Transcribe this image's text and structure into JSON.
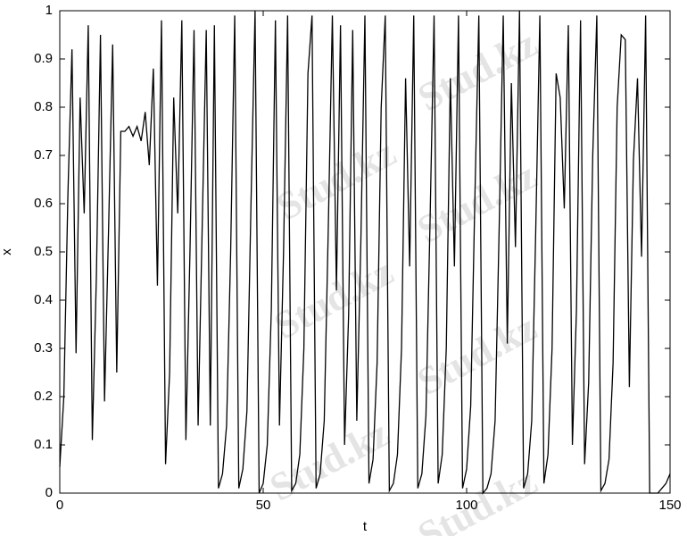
{
  "chart_data": {
    "type": "line",
    "x_label": "t",
    "y_label": "x",
    "watermark": "Stud.kz",
    "x": [
      0,
      1,
      2,
      3,
      4,
      5,
      6,
      7,
      8,
      9,
      10,
      11,
      12,
      13,
      14,
      15,
      16,
      17,
      18,
      19,
      20,
      21,
      22,
      23,
      24,
      25,
      26,
      27,
      28,
      29,
      30,
      31,
      32,
      33,
      34,
      35,
      36,
      37,
      38,
      39,
      40,
      41,
      42,
      43,
      44,
      45,
      46,
      47,
      48,
      49,
      50,
      51,
      52,
      53,
      54,
      55,
      56,
      57,
      58,
      59,
      60,
      61,
      62,
      63,
      64,
      65,
      66,
      67,
      68,
      69,
      70,
      71,
      72,
      73,
      74,
      75,
      76,
      77,
      78,
      79,
      80,
      81,
      82,
      83,
      84,
      85,
      86,
      87,
      88,
      89,
      90,
      91,
      92,
      93,
      94,
      95,
      96,
      97,
      98,
      99,
      100,
      101,
      102,
      103,
      104,
      105,
      106,
      107,
      108,
      109,
      110,
      111,
      112,
      113,
      114,
      115,
      116,
      117,
      118,
      119,
      120,
      121,
      122,
      123,
      124,
      125,
      126,
      127,
      128,
      129,
      130,
      131,
      132,
      133,
      134,
      135,
      136,
      137,
      138,
      139,
      140,
      141,
      142,
      143,
      144,
      145,
      146,
      147,
      148,
      149,
      150
    ],
    "series": [
      {
        "color": "#000000",
        "values": [
          0.055,
          0.2,
          0.62,
          0.92,
          0.29,
          0.82,
          0.58,
          0.97,
          0.11,
          0.45,
          0.95,
          0.19,
          0.55,
          0.93,
          0.25,
          0.75,
          0.75,
          0.76,
          0.74,
          0.76,
          0.73,
          0.79,
          0.68,
          0.88,
          0.43,
          0.98,
          0.06,
          0.25,
          0.82,
          0.58,
          0.98,
          0.11,
          0.5,
          0.96,
          0.14,
          0.55,
          0.96,
          0.14,
          0.97,
          0.01,
          0.04,
          0.14,
          0.5,
          0.99,
          0.01,
          0.05,
          0.17,
          0.6,
          1.0,
          0.0,
          0.02,
          0.1,
          0.38,
          0.98,
          0.14,
          0.5,
          0.99,
          0.005,
          0.02,
          0.08,
          0.3,
          0.87,
          0.99,
          0.01,
          0.04,
          0.15,
          0.55,
          0.99,
          0.42,
          0.97,
          0.1,
          0.37,
          0.96,
          0.15,
          0.52,
          0.99,
          0.02,
          0.07,
          0.27,
          0.8,
          0.99,
          0.005,
          0.02,
          0.08,
          0.3,
          0.86,
          0.47,
          0.99,
          0.01,
          0.04,
          0.16,
          0.56,
          0.99,
          0.02,
          0.08,
          0.3,
          0.86,
          0.47,
          0.99,
          0.01,
          0.05,
          0.18,
          0.6,
          0.99,
          0.0,
          0.01,
          0.04,
          0.15,
          0.55,
          0.99,
          0.31,
          0.85,
          0.51,
          1.0,
          0.01,
          0.04,
          0.15,
          0.55,
          0.99,
          0.02,
          0.08,
          0.3,
          0.87,
          0.82,
          0.59,
          0.97,
          0.1,
          0.38,
          0.98,
          0.06,
          0.23,
          0.7,
          0.99,
          0.005,
          0.02,
          0.07,
          0.27,
          0.8,
          0.95,
          0.94,
          0.22,
          0.69,
          0.86,
          0.49,
          0.99,
          0.0,
          0.0,
          0.0,
          0.01,
          0.02,
          0.04
        ]
      }
    ],
    "xlim": [
      0,
      150
    ],
    "xticks": [
      0,
      50,
      100,
      150
    ],
    "ylim": [
      0,
      1
    ],
    "yticks": [
      0,
      0.1,
      0.2,
      0.3,
      0.4,
      0.5,
      0.6,
      0.7,
      0.8,
      0.9,
      1
    ],
    "grid": false
  }
}
